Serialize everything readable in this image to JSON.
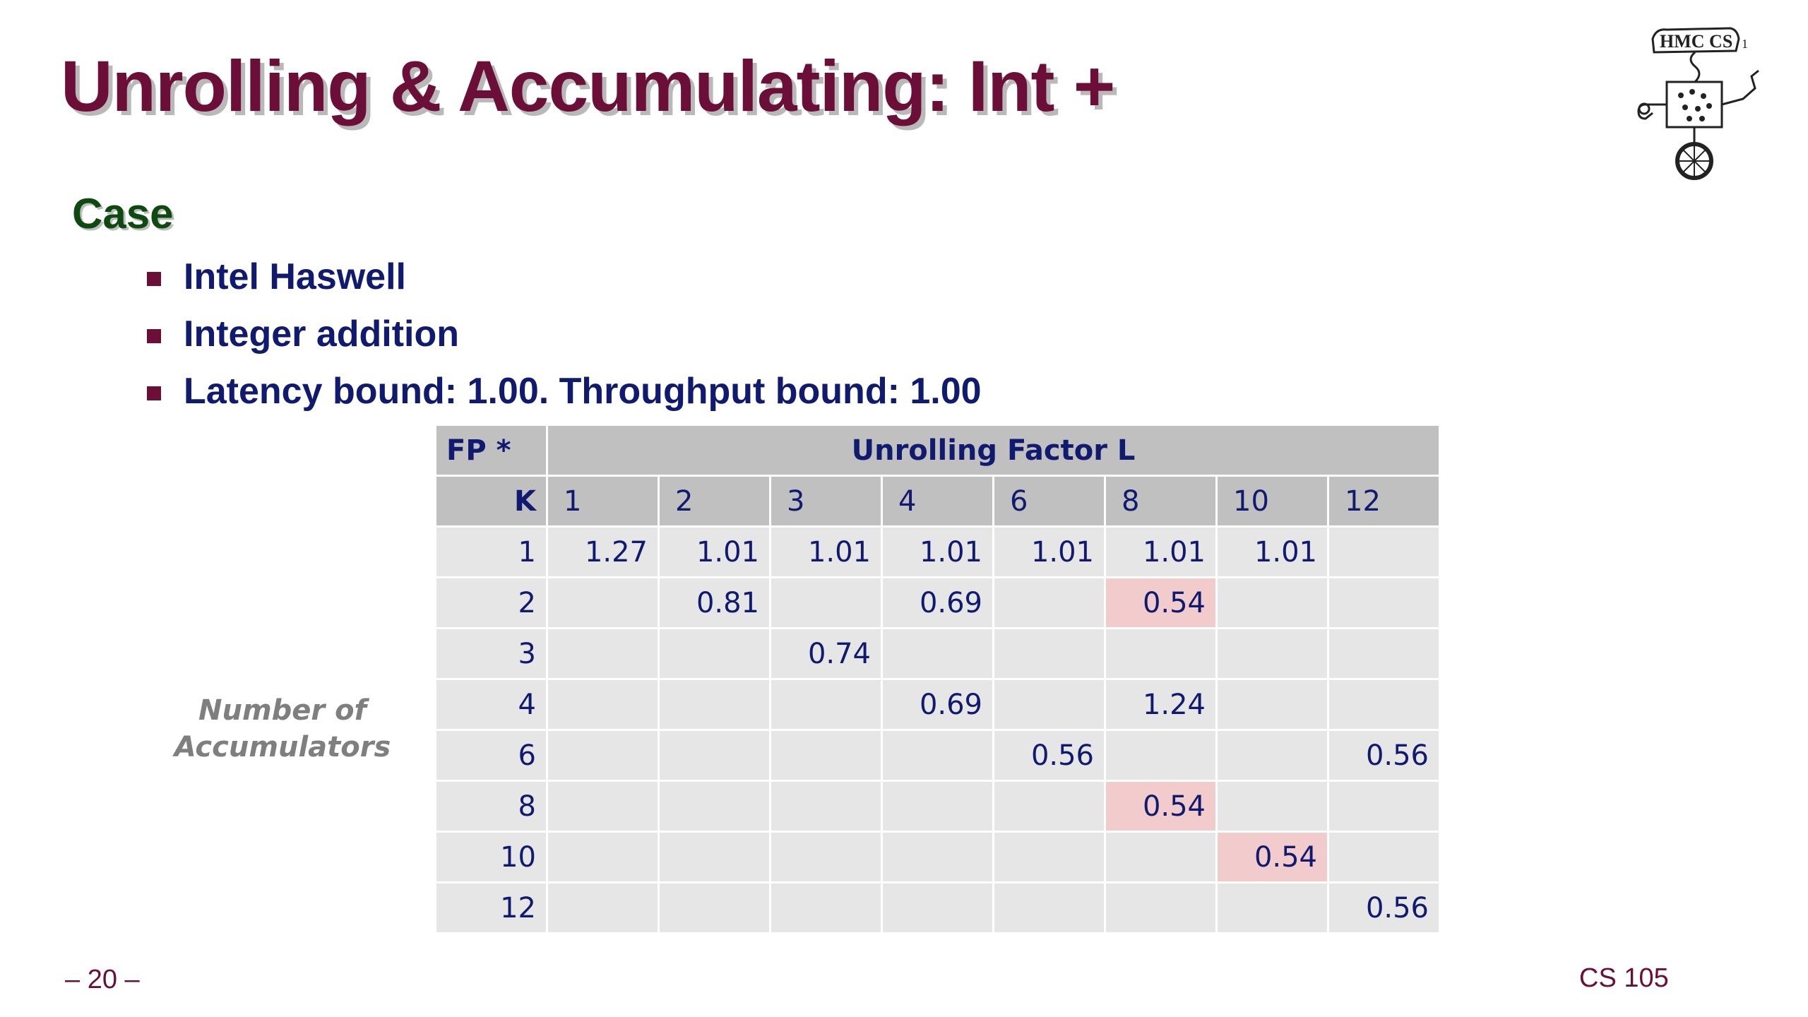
{
  "slide": {
    "title": "Unrolling & Accumulating: Int +",
    "section_heading": "Case",
    "bullets": [
      "Intel Haswell",
      "Integer addition",
      "Latency bound: 1.00.  Throughput bound: 1.00"
    ],
    "logo_text": "HMC CS",
    "logo_mark": "1",
    "footer_page": "– 20 –",
    "footer_course": "CS 105"
  },
  "table": {
    "corner_label": "FP *",
    "group_header": "Unrolling Factor L",
    "k_label": "K",
    "row_axis_label": [
      "Number of",
      "Accumulators"
    ],
    "columns": [
      "1",
      "2",
      "3",
      "4",
      "6",
      "8",
      "10",
      "12"
    ],
    "rows": [
      {
        "k": "1",
        "cells": [
          "1.27",
          "1.01",
          "1.01",
          "1.01",
          "1.01",
          "1.01",
          "1.01",
          ""
        ]
      },
      {
        "k": "2",
        "cells": [
          "",
          "0.81",
          "",
          "0.69",
          "",
          "0.54",
          "",
          ""
        ]
      },
      {
        "k": "3",
        "cells": [
          "",
          "",
          "0.74",
          "",
          "",
          "",
          "",
          ""
        ]
      },
      {
        "k": "4",
        "cells": [
          "",
          "",
          "",
          "0.69",
          "",
          "1.24",
          "",
          ""
        ]
      },
      {
        "k": "6",
        "cells": [
          "",
          "",
          "",
          "",
          "0.56",
          "",
          "",
          "0.56"
        ]
      },
      {
        "k": "8",
        "cells": [
          "",
          "",
          "",
          "",
          "",
          "0.54",
          "",
          ""
        ]
      },
      {
        "k": "10",
        "cells": [
          "",
          "",
          "",
          "",
          "",
          "",
          "0.54",
          ""
        ]
      },
      {
        "k": "12",
        "cells": [
          "",
          "",
          "",
          "",
          "",
          "",
          "",
          "0.56"
        ]
      }
    ],
    "highlighted_cells": [
      {
        "k": "2",
        "L": "8"
      },
      {
        "k": "8",
        "L": "8"
      },
      {
        "k": "10",
        "L": "10"
      }
    ],
    "colors": {
      "header_bg": "#c0c0c0",
      "cell_bg": "#e6e6e6",
      "highlight_bg": "#f2cccc",
      "text": "#101a6e"
    }
  },
  "colors": {
    "title": "#6b0f38",
    "heading": "#0e4a10",
    "bullet_text": "#101a6e",
    "footer": "#6b0f38"
  }
}
